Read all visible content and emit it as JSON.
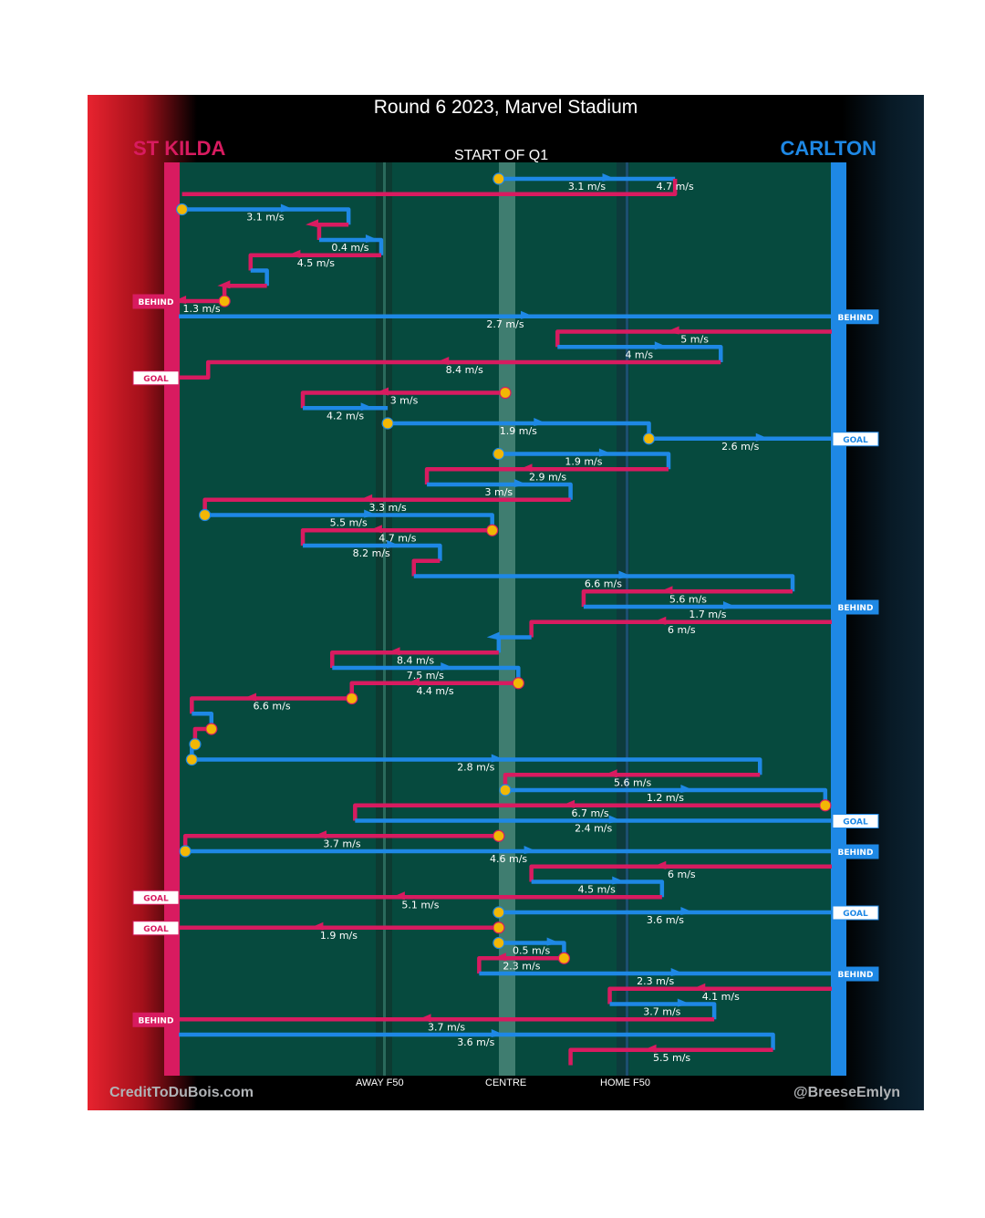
{
  "header": {
    "title": "Round 6 2023, Marvel Stadium",
    "subtitle": "START OF Q1"
  },
  "teams": {
    "left": "ST KILDA",
    "right": "CARLTON",
    "left_color": "#d81b60",
    "right_color": "#1e88e5"
  },
  "axis": {
    "away": "AWAY F50",
    "centre": "CENTRE",
    "home": "HOME F50"
  },
  "credits": {
    "left": "CreditToDuBois.com",
    "right": "@BreeseEmlyn"
  },
  "chart_data": {
    "type": "line",
    "title": "Round 6 2023, Marvel Stadium",
    "x_range": [
      0,
      100
    ],
    "x_reference": {
      "st_kilda_goal": 0,
      "away_f50": 32,
      "centre": 50,
      "home_f50": 68,
      "carlton_goal": 100
    },
    "chains": [
      {
        "team": "carlton",
        "start": true,
        "speed": "3.1 m/s",
        "pts": [
          [
            49,
            0
          ],
          [
            76,
            0
          ]
        ]
      },
      {
        "team": "stkilda",
        "speed": "4.7 m/s",
        "pts": [
          [
            76,
            0
          ],
          [
            76,
            1
          ],
          [
            0.5,
            1
          ]
        ]
      },
      {
        "team": "carlton",
        "start": true,
        "speed": "3.1 m/s",
        "pts": [
          [
            0.5,
            2
          ],
          [
            26,
            2
          ],
          [
            26,
            3
          ]
        ]
      },
      {
        "team": "stkilda",
        "speed": "",
        "pts": [
          [
            26,
            3
          ],
          [
            21.5,
            3
          ],
          [
            21.5,
            4
          ]
        ]
      },
      {
        "team": "carlton",
        "speed": "0.4 m/s",
        "pts": [
          [
            21.5,
            4
          ],
          [
            31,
            4
          ],
          [
            31,
            5
          ]
        ]
      },
      {
        "team": "stkilda",
        "speed": "4.5 m/s",
        "pts": [
          [
            31,
            5
          ],
          [
            11,
            5
          ],
          [
            11,
            6
          ]
        ]
      },
      {
        "team": "carlton",
        "speed": "",
        "pts": [
          [
            11,
            6
          ],
          [
            13.5,
            6
          ],
          [
            13.5,
            7
          ]
        ]
      },
      {
        "team": "stkilda",
        "speed": "",
        "pts": [
          [
            13.5,
            7
          ],
          [
            7,
            7
          ],
          [
            7,
            8
          ]
        ]
      },
      {
        "team": "stkilda",
        "start": true,
        "speed": "1.3 m/s",
        "pts": [
          [
            7,
            8
          ],
          [
            0,
            8
          ]
        ],
        "end": "BEHIND"
      },
      {
        "team": "carlton",
        "speed": "2.7 m/s",
        "pts": [
          [
            0,
            9
          ],
          [
            100,
            9
          ]
        ],
        "end": "BEHIND"
      },
      {
        "team": "stkilda",
        "speed": "5 m/s",
        "pts": [
          [
            100,
            10
          ],
          [
            58,
            10
          ],
          [
            58,
            11
          ]
        ]
      },
      {
        "team": "carlton",
        "speed": "4 m/s",
        "pts": [
          [
            58,
            11
          ],
          [
            83,
            11
          ],
          [
            83,
            12
          ]
        ]
      },
      {
        "team": "stkilda",
        "speed": "8.4 m/s",
        "pts": [
          [
            83,
            12
          ],
          [
            4.5,
            12
          ],
          [
            4.5,
            13
          ],
          [
            0,
            13
          ]
        ],
        "end": "GOAL"
      },
      {
        "team": "stkilda",
        "start": true,
        "speed": "3 m/s",
        "pts": [
          [
            50,
            14
          ],
          [
            19,
            14
          ],
          [
            19,
            15
          ]
        ]
      },
      {
        "team": "carlton",
        "speed": "4.2 m/s",
        "pts": [
          [
            19,
            15
          ],
          [
            32,
            15
          ]
        ]
      },
      {
        "team": "carlton",
        "start": true,
        "speed": "1.9 m/s",
        "pts": [
          [
            32,
            16
          ],
          [
            72,
            16
          ],
          [
            72,
            17
          ]
        ]
      },
      {
        "team": "carlton",
        "start": true,
        "speed": "2.6 m/s",
        "pts": [
          [
            72,
            17
          ],
          [
            100,
            17
          ]
        ],
        "end": "GOAL"
      },
      {
        "team": "carlton",
        "start": true,
        "speed": "1.9 m/s",
        "pts": [
          [
            49,
            18
          ],
          [
            75,
            18
          ],
          [
            75,
            19
          ]
        ]
      },
      {
        "team": "stkilda",
        "speed": "2.9 m/s",
        "pts": [
          [
            75,
            19
          ],
          [
            38,
            19
          ],
          [
            38,
            20
          ]
        ]
      },
      {
        "team": "carlton",
        "speed": "3 m/s",
        "pts": [
          [
            38,
            20
          ],
          [
            60,
            20
          ],
          [
            60,
            21
          ]
        ]
      },
      {
        "team": "stkilda",
        "speed": "3.3 m/s",
        "pts": [
          [
            60,
            21
          ],
          [
            4,
            21
          ],
          [
            4,
            22
          ]
        ]
      },
      {
        "team": "carlton",
        "start": true,
        "speed": "5.5 m/s",
        "pts": [
          [
            4,
            22
          ],
          [
            48,
            22
          ],
          [
            48,
            23
          ]
        ]
      },
      {
        "team": "stkilda",
        "start": true,
        "speed": "4.7 m/s",
        "pts": [
          [
            48,
            23
          ],
          [
            19,
            23
          ],
          [
            19,
            24
          ]
        ]
      },
      {
        "team": "carlton",
        "speed": "8.2 m/s",
        "pts": [
          [
            19,
            24
          ],
          [
            40,
            24
          ],
          [
            40,
            25
          ]
        ]
      },
      {
        "team": "stkilda",
        "speed": "",
        "pts": [
          [
            40,
            25
          ],
          [
            36,
            25
          ],
          [
            36,
            26
          ]
        ]
      },
      {
        "team": "carlton",
        "speed": "6.6 m/s",
        "pts": [
          [
            36,
            26
          ],
          [
            94,
            26
          ],
          [
            94,
            27
          ]
        ]
      },
      {
        "team": "stkilda",
        "speed": "5.6 m/s",
        "pts": [
          [
            94,
            27
          ],
          [
            62,
            27
          ],
          [
            62,
            28
          ]
        ]
      },
      {
        "team": "carlton",
        "speed": "1.7 m/s",
        "pts": [
          [
            62,
            28
          ],
          [
            100,
            28
          ]
        ],
        "end": "BEHIND"
      },
      {
        "team": "stkilda",
        "speed": "6 m/s",
        "pts": [
          [
            100,
            29
          ],
          [
            54,
            29
          ],
          [
            54,
            30
          ]
        ]
      },
      {
        "team": "carlton",
        "speed": "",
        "pts": [
          [
            54,
            30
          ],
          [
            49,
            30
          ],
          [
            49,
            31
          ]
        ]
      },
      {
        "team": "stkilda",
        "speed": "8.4 m/s",
        "pts": [
          [
            49,
            31
          ],
          [
            23.5,
            31
          ],
          [
            23.5,
            32
          ]
        ]
      },
      {
        "team": "carlton",
        "speed": "7.5 m/s",
        "pts": [
          [
            23.5,
            32
          ],
          [
            52,
            32
          ],
          [
            52,
            33
          ]
        ]
      },
      {
        "team": "stkilda",
        "start": true,
        "speed": "4.4 m/s",
        "pts": [
          [
            52,
            33
          ],
          [
            26.5,
            33
          ],
          [
            26.5,
            34
          ]
        ]
      },
      {
        "team": "stkilda",
        "start": true,
        "speed": "6.6 m/s",
        "pts": [
          [
            26.5,
            34
          ],
          [
            2,
            34
          ],
          [
            2,
            35
          ]
        ]
      },
      {
        "team": "carlton",
        "speed": "",
        "pts": [
          [
            2,
            35
          ],
          [
            5,
            35
          ],
          [
            5,
            36
          ]
        ]
      },
      {
        "team": "stkilda",
        "start": true,
        "speed": "",
        "pts": [
          [
            5,
            36
          ],
          [
            2.5,
            36
          ],
          [
            2.5,
            37
          ]
        ]
      },
      {
        "team": "carlton",
        "start": true,
        "speed": "",
        "pts": [
          [
            2.5,
            37
          ],
          [
            2,
            37
          ],
          [
            2,
            38
          ]
        ]
      },
      {
        "team": "carlton",
        "start": true,
        "speed": "2.8 m/s",
        "pts": [
          [
            2,
            38
          ],
          [
            89,
            38
          ],
          [
            89,
            39
          ]
        ]
      },
      {
        "team": "stkilda",
        "speed": "5.6 m/s",
        "pts": [
          [
            89,
            39
          ],
          [
            50,
            39
          ],
          [
            50,
            40
          ]
        ]
      },
      {
        "team": "carlton",
        "start": true,
        "speed": "1.2 m/s",
        "pts": [
          [
            50,
            40
          ],
          [
            99,
            40
          ],
          [
            99,
            41
          ]
        ]
      },
      {
        "team": "stkilda",
        "start": true,
        "speed": "6.7 m/s",
        "pts": [
          [
            99,
            41
          ],
          [
            27,
            41
          ],
          [
            27,
            42
          ]
        ]
      },
      {
        "team": "carlton",
        "speed": "2.4 m/s",
        "pts": [
          [
            27,
            42
          ],
          [
            100,
            42
          ]
        ],
        "end": "GOAL"
      },
      {
        "team": "stkilda",
        "start": true,
        "speed": "3.7 m/s",
        "pts": [
          [
            49,
            43
          ],
          [
            1,
            43
          ],
          [
            1,
            44
          ]
        ]
      },
      {
        "team": "carlton",
        "start": true,
        "speed": "4.6 m/s",
        "pts": [
          [
            1,
            44
          ],
          [
            100,
            44
          ]
        ],
        "end": "BEHIND"
      },
      {
        "team": "stkilda",
        "speed": "6 m/s",
        "pts": [
          [
            100,
            45
          ],
          [
            54,
            45
          ],
          [
            54,
            46
          ]
        ]
      },
      {
        "team": "carlton",
        "speed": "4.5 m/s",
        "pts": [
          [
            54,
            46
          ],
          [
            74,
            46
          ],
          [
            74,
            47
          ]
        ]
      },
      {
        "team": "stkilda",
        "speed": "5.1 m/s",
        "pts": [
          [
            74,
            47
          ],
          [
            0,
            47
          ]
        ],
        "end": "GOAL"
      },
      {
        "team": "carlton",
        "start": true,
        "speed": "3.6 m/s",
        "pts": [
          [
            49,
            48
          ],
          [
            100,
            48
          ]
        ],
        "end": "GOAL"
      },
      {
        "team": "stkilda",
        "start": true,
        "speed": "1.9 m/s",
        "pts": [
          [
            49,
            49
          ],
          [
            0,
            49
          ]
        ],
        "end": "GOAL"
      },
      {
        "team": "carlton",
        "start": true,
        "speed": "0.5 m/s",
        "pts": [
          [
            49,
            50
          ],
          [
            59,
            50
          ],
          [
            59,
            51
          ]
        ]
      },
      {
        "team": "stkilda",
        "start": true,
        "speed": "2.3 m/s",
        "pts": [
          [
            59,
            51
          ],
          [
            46,
            51
          ],
          [
            46,
            52
          ]
        ]
      },
      {
        "team": "carlton",
        "speed": "2.3 m/s",
        "pts": [
          [
            46,
            52
          ],
          [
            100,
            52
          ]
        ],
        "end": "BEHIND"
      },
      {
        "team": "stkilda",
        "speed": "4.1 m/s",
        "pts": [
          [
            100,
            53
          ],
          [
            66,
            53
          ],
          [
            66,
            54
          ]
        ]
      },
      {
        "team": "carlton",
        "speed": "3.7 m/s",
        "pts": [
          [
            66,
            54
          ],
          [
            82,
            54
          ],
          [
            82,
            55
          ]
        ]
      },
      {
        "team": "stkilda",
        "speed": "3.7 m/s",
        "pts": [
          [
            82,
            55
          ],
          [
            0,
            55
          ]
        ],
        "end": "BEHIND"
      },
      {
        "team": "carlton",
        "speed": "3.6 m/s",
        "pts": [
          [
            0,
            56
          ],
          [
            91,
            56
          ],
          [
            91,
            57
          ]
        ]
      },
      {
        "team": "stkilda",
        "speed": "5.5 m/s",
        "pts": [
          [
            91,
            57
          ],
          [
            60,
            57
          ],
          [
            60,
            58
          ]
        ]
      }
    ]
  }
}
